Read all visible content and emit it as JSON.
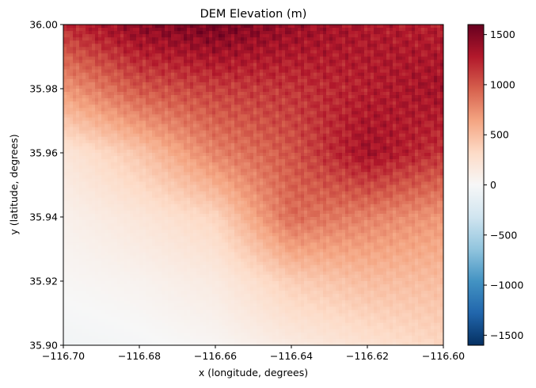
{
  "chart_data": {
    "type": "heatmap",
    "title": "DEM Elevation (m)",
    "xlabel": "x (longitude, degrees)",
    "ylabel": "y (latitude, degrees)",
    "xlim": [
      -116.7,
      -116.6
    ],
    "ylim": [
      35.9,
      36.0
    ],
    "x_ticks": [
      -116.7,
      -116.68,
      -116.66,
      -116.64,
      -116.62,
      -116.6
    ],
    "x_tick_labels": [
      "−116.70",
      "−116.68",
      "−116.66",
      "−116.64",
      "−116.62",
      "−116.60"
    ],
    "y_ticks": [
      35.9,
      35.92,
      35.94,
      35.96,
      35.98,
      36.0
    ],
    "y_tick_labels": [
      "35.90",
      "35.92",
      "35.94",
      "35.96",
      "35.98",
      "36.00"
    ],
    "colormap": "RdBu_r",
    "colorbar": {
      "range": [
        -1600,
        1600
      ],
      "ticks": [
        1500,
        1000,
        500,
        0,
        -500,
        -1000,
        -1500
      ],
      "tick_labels": [
        "1500",
        "1000",
        "500",
        "0",
        "−500",
        "−1000",
        "−1500"
      ]
    },
    "grid": false,
    "legend": "none",
    "approx_elevation_grid": {
      "x": [
        -116.7,
        -116.68,
        -116.66,
        -116.64,
        -116.62,
        -116.6
      ],
      "y": [
        36.0,
        35.98,
        35.96,
        35.94,
        35.92,
        35.9
      ],
      "z": [
        [
          1200,
          1450,
          1550,
          1400,
          1300,
          1250
        ],
        [
          700,
          1000,
          1100,
          1150,
          1250,
          1350
        ],
        [
          200,
          450,
          800,
          1000,
          1350,
          1150
        ],
        [
          80,
          200,
          350,
          900,
          800,
          700
        ],
        [
          20,
          60,
          150,
          400,
          500,
          500
        ],
        [
          -50,
          -20,
          30,
          150,
          250,
          350
        ]
      ]
    }
  }
}
